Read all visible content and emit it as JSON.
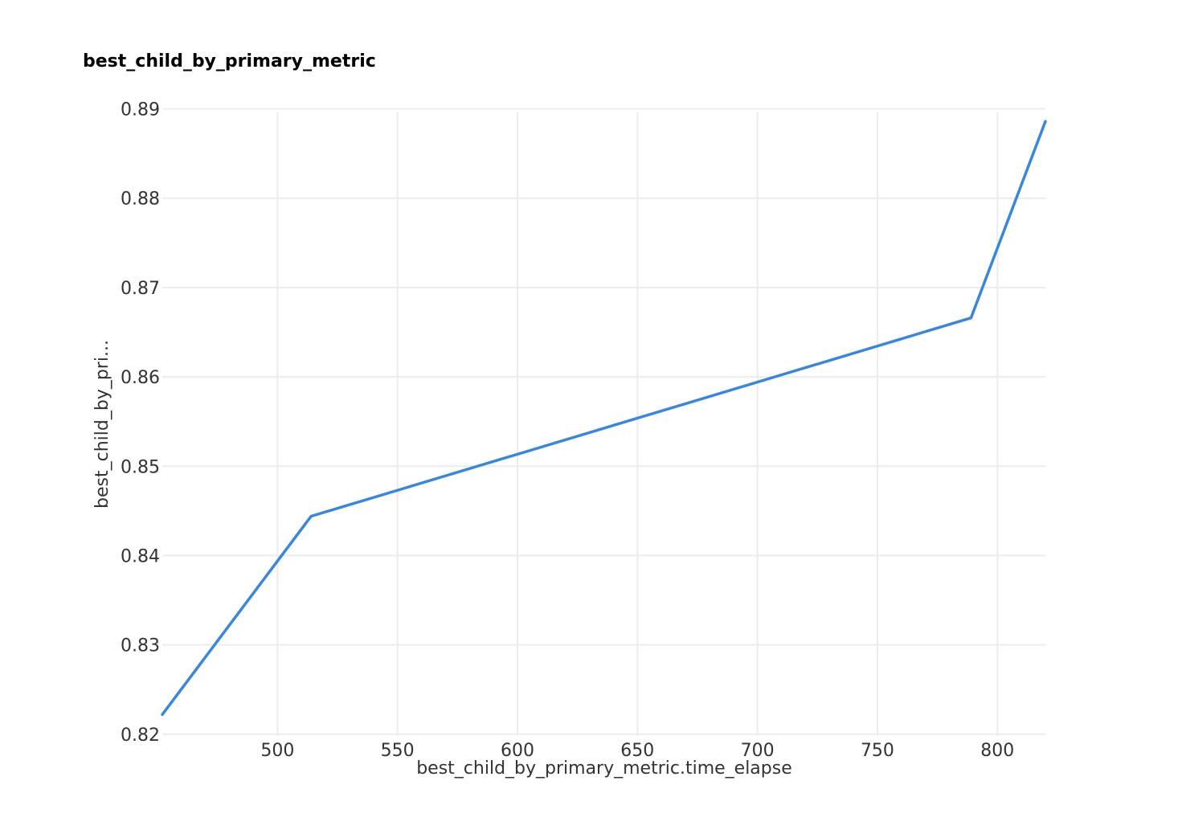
{
  "chart_data": {
    "type": "line",
    "title": "best_child_by_primary_metric",
    "xlabel": "best_child_by_primary_metric.time_elapse",
    "ylabel": "best_child_by_pri...",
    "xlim": [
      452,
      820
    ],
    "ylim": [
      0.8198,
      0.8896
    ],
    "x_ticks": [
      500,
      550,
      600,
      650,
      700,
      750,
      800
    ],
    "x_tick_labels": [
      "500",
      "550",
      "600",
      "650",
      "700",
      "750",
      "800"
    ],
    "y_ticks": [
      0.82,
      0.83,
      0.84,
      0.85,
      0.86,
      0.87,
      0.88,
      0.89
    ],
    "y_tick_labels": [
      "0.82",
      "0.83",
      "0.84",
      "0.85",
      "0.86",
      "0.87",
      "0.88",
      "0.89"
    ],
    "grid": true,
    "legend": "none",
    "series": [
      {
        "color": "#3a86d8",
        "x": [
          452,
          514,
          789,
          820
        ],
        "y": [
          0.8222,
          0.8444,
          0.8666,
          0.8886
        ]
      }
    ]
  }
}
